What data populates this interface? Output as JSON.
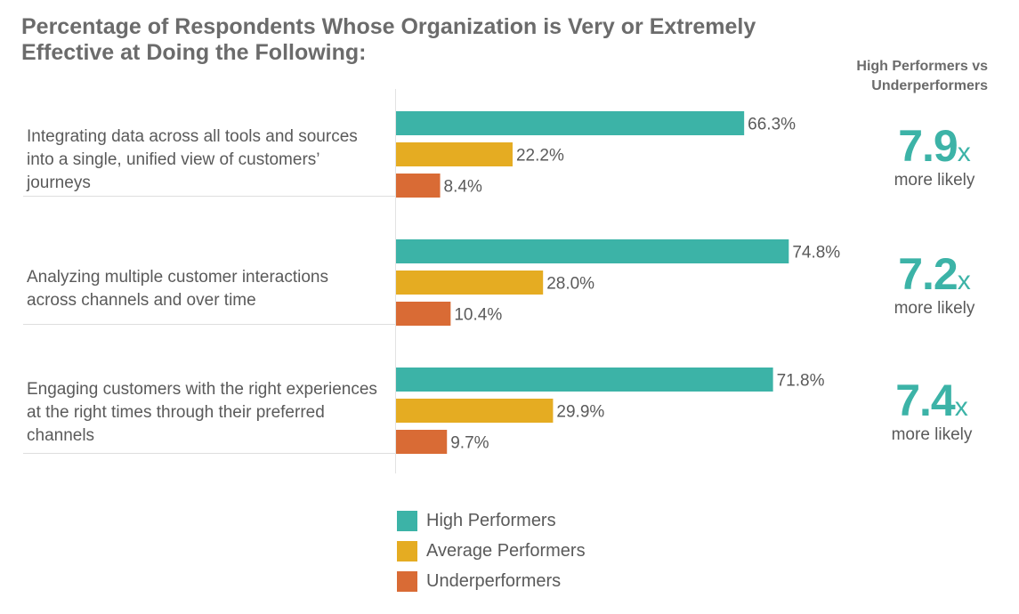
{
  "chart_data": {
    "type": "bar",
    "orientation": "horizontal",
    "title": "Percentage of Respondents Whose Organization is Very or Extremely Effective at Doing the Following:",
    "categories": [
      "Integrating data across all tools and sources into a single, unified view of customers’ journeys",
      "Analyzing multiple customer interactions across channels and over time",
      "Engaging customers with the right experiences at the right times through their preferred channels"
    ],
    "series": [
      {
        "name": "High Performers",
        "color": "#3cb3a7",
        "values": [
          66.3,
          74.8,
          71.8
        ],
        "labels": [
          "66.3%",
          "74.8%",
          "71.8%"
        ]
      },
      {
        "name": "Average Performers",
        "color": "#e5ac22",
        "values": [
          22.2,
          28.0,
          29.9
        ],
        "labels": [
          "22.2%",
          "28.0%",
          "29.9%"
        ]
      },
      {
        "name": "Underperformers",
        "color": "#d96b35",
        "values": [
          8.4,
          10.4,
          9.7
        ],
        "labels": [
          "8.4%",
          "10.4%",
          "9.7%"
        ]
      }
    ],
    "xlim": [
      0,
      100
    ],
    "grid": false,
    "legend_position": "bottom",
    "ratio_header": "High Performers vs Underperformers",
    "ratios": [
      {
        "value": "7.9",
        "suffix": "x",
        "caption": "more likely"
      },
      {
        "value": "7.2",
        "suffix": "x",
        "caption": "more likely"
      },
      {
        "value": "7.4",
        "suffix": "x",
        "caption": "more likely"
      }
    ]
  }
}
